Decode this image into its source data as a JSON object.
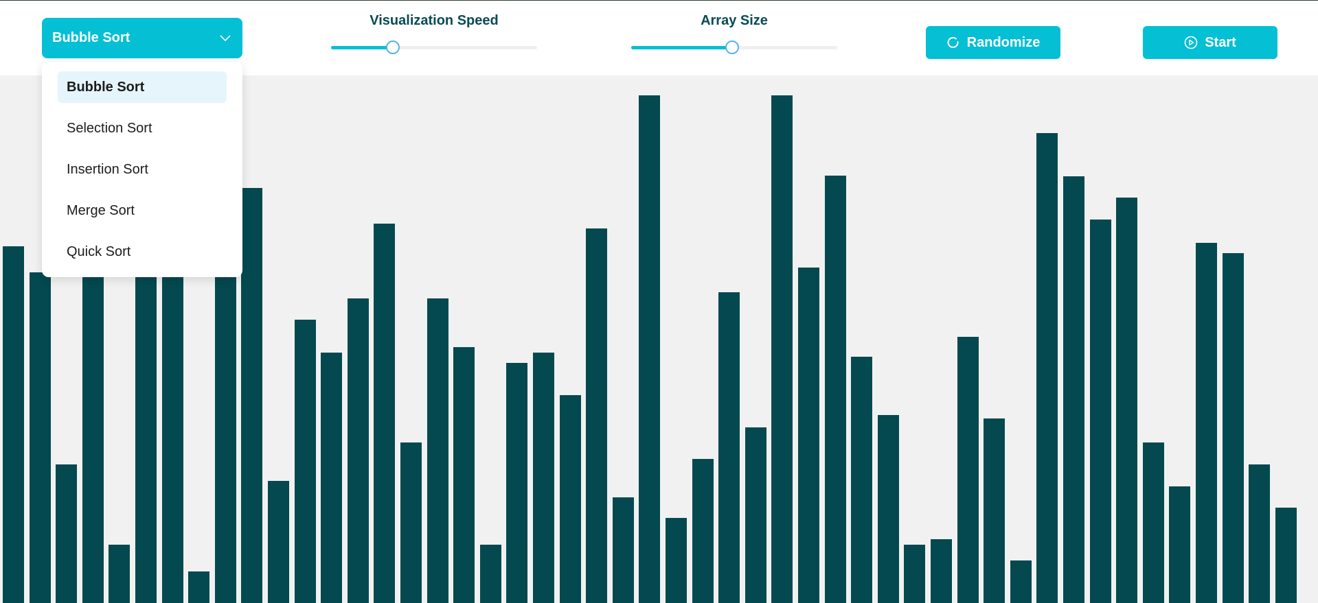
{
  "toolbar": {
    "algorithm_select": {
      "selected": "Bubble Sort",
      "icon": "chevron-down-icon"
    },
    "speed_slider": {
      "label": "Visualization Speed",
      "value_fraction": 0.3
    },
    "size_slider": {
      "label": "Array Size",
      "value_fraction": 0.49
    },
    "randomize_button": {
      "label": "Randomize",
      "icon": "refresh-icon"
    },
    "start_button": {
      "label": "Start",
      "icon": "play-circle-icon"
    }
  },
  "dropdown": {
    "options": [
      {
        "label": "Bubble Sort",
        "selected": true
      },
      {
        "label": "Selection Sort",
        "selected": false
      },
      {
        "label": "Insertion Sort",
        "selected": false
      },
      {
        "label": "Merge Sort",
        "selected": false
      },
      {
        "label": "Quick Sort",
        "selected": false
      }
    ]
  },
  "colors": {
    "accent": "#05bfd4",
    "bar": "#04494f",
    "title_text": "#064b55",
    "canvas_bg": "#f1f1f1",
    "selected_option_bg": "#e6f4fc"
  },
  "chart_data": {
    "type": "bar",
    "values": [
      521,
      483,
      203,
      526,
      86,
      489,
      597,
      47,
      496,
      606,
      179,
      414,
      366,
      445,
      554,
      235,
      445,
      374,
      86,
      351,
      366,
      304,
      547,
      155,
      741,
      125,
      211,
      454,
      257,
      741,
      490,
      624,
      360,
      275,
      86,
      94,
      389,
      270,
      63,
      686,
      623,
      560,
      592,
      235,
      171,
      526,
      511,
      203,
      140
    ]
  }
}
